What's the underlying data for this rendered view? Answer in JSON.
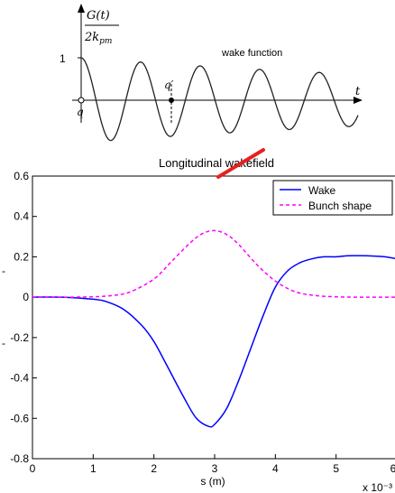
{
  "wake_diagram": {
    "y_label_numerator": "G(t)",
    "y_label_denominator": "2k_pm",
    "y_label_denominator_base": "2k",
    "y_label_denominator_sub": "pm",
    "y_tick_one": "1",
    "x_axis_label": "t",
    "origin_label": "q",
    "point_label": "q′",
    "curve_label": "wake function",
    "curve": {
      "type": "damped-cosine",
      "start_value": 1,
      "peaks_visible": 5
    }
  },
  "chart_data": {
    "type": "line",
    "title": "Longitudinal wakefield",
    "xlabel": "s (m)",
    "ylabel": "",
    "x_multiplier_label": "x 10⁻³",
    "xlim": [
      0,
      6
    ],
    "ylim": [
      -0.8,
      0.6
    ],
    "x_ticks": [
      0,
      1,
      2,
      3,
      4,
      5,
      6
    ],
    "x_tick_labels": [
      "0",
      "1",
      "2",
      "3",
      "4",
      "5",
      "6"
    ],
    "y_ticks": [
      -0.8,
      -0.6,
      -0.4,
      -0.2,
      0,
      0.2,
      0.4,
      0.6
    ],
    "y_tick_labels": [
      "-0.8",
      "-0.6",
      "-0.4",
      "-0.2",
      "0",
      "0.2",
      "0.4",
      "0.6"
    ],
    "grid": false,
    "legend_position": "top-right",
    "series": [
      {
        "name": "Wake",
        "color": "#0000ff",
        "style": "solid",
        "x": [
          0,
          0.5,
          1.0,
          1.2,
          1.5,
          1.8,
          2.0,
          2.2,
          2.5,
          2.7,
          2.9,
          3.0,
          3.2,
          3.4,
          3.6,
          3.8,
          4.0,
          4.2,
          4.4,
          4.6,
          4.8,
          5.0,
          5.2,
          5.5,
          5.8,
          6.0
        ],
        "y": [
          0,
          0,
          -0.01,
          -0.02,
          -0.06,
          -0.14,
          -0.22,
          -0.33,
          -0.5,
          -0.6,
          -0.64,
          -0.63,
          -0.55,
          -0.41,
          -0.25,
          -0.09,
          0.05,
          0.13,
          0.17,
          0.19,
          0.2,
          0.2,
          0.205,
          0.205,
          0.2,
          0.19
        ]
      },
      {
        "name": "Bunch shape",
        "color": "#ff00ff",
        "style": "dashed",
        "x": [
          0,
          0.5,
          1.0,
          1.3,
          1.6,
          2.0,
          2.3,
          2.6,
          2.8,
          3.0,
          3.2,
          3.4,
          3.7,
          4.0,
          4.3,
          4.6,
          5.0,
          5.5,
          6.0
        ],
        "y": [
          0,
          0,
          0.002,
          0.008,
          0.025,
          0.09,
          0.18,
          0.27,
          0.315,
          0.33,
          0.31,
          0.26,
          0.16,
          0.08,
          0.03,
          0.01,
          0.002,
          0,
          0
        ]
      }
    ]
  },
  "annotation": {
    "color": "#e82020"
  },
  "figure_labels": {
    "left_tick_fragment_a": "-",
    "left_tick_fragment_b": "-"
  }
}
